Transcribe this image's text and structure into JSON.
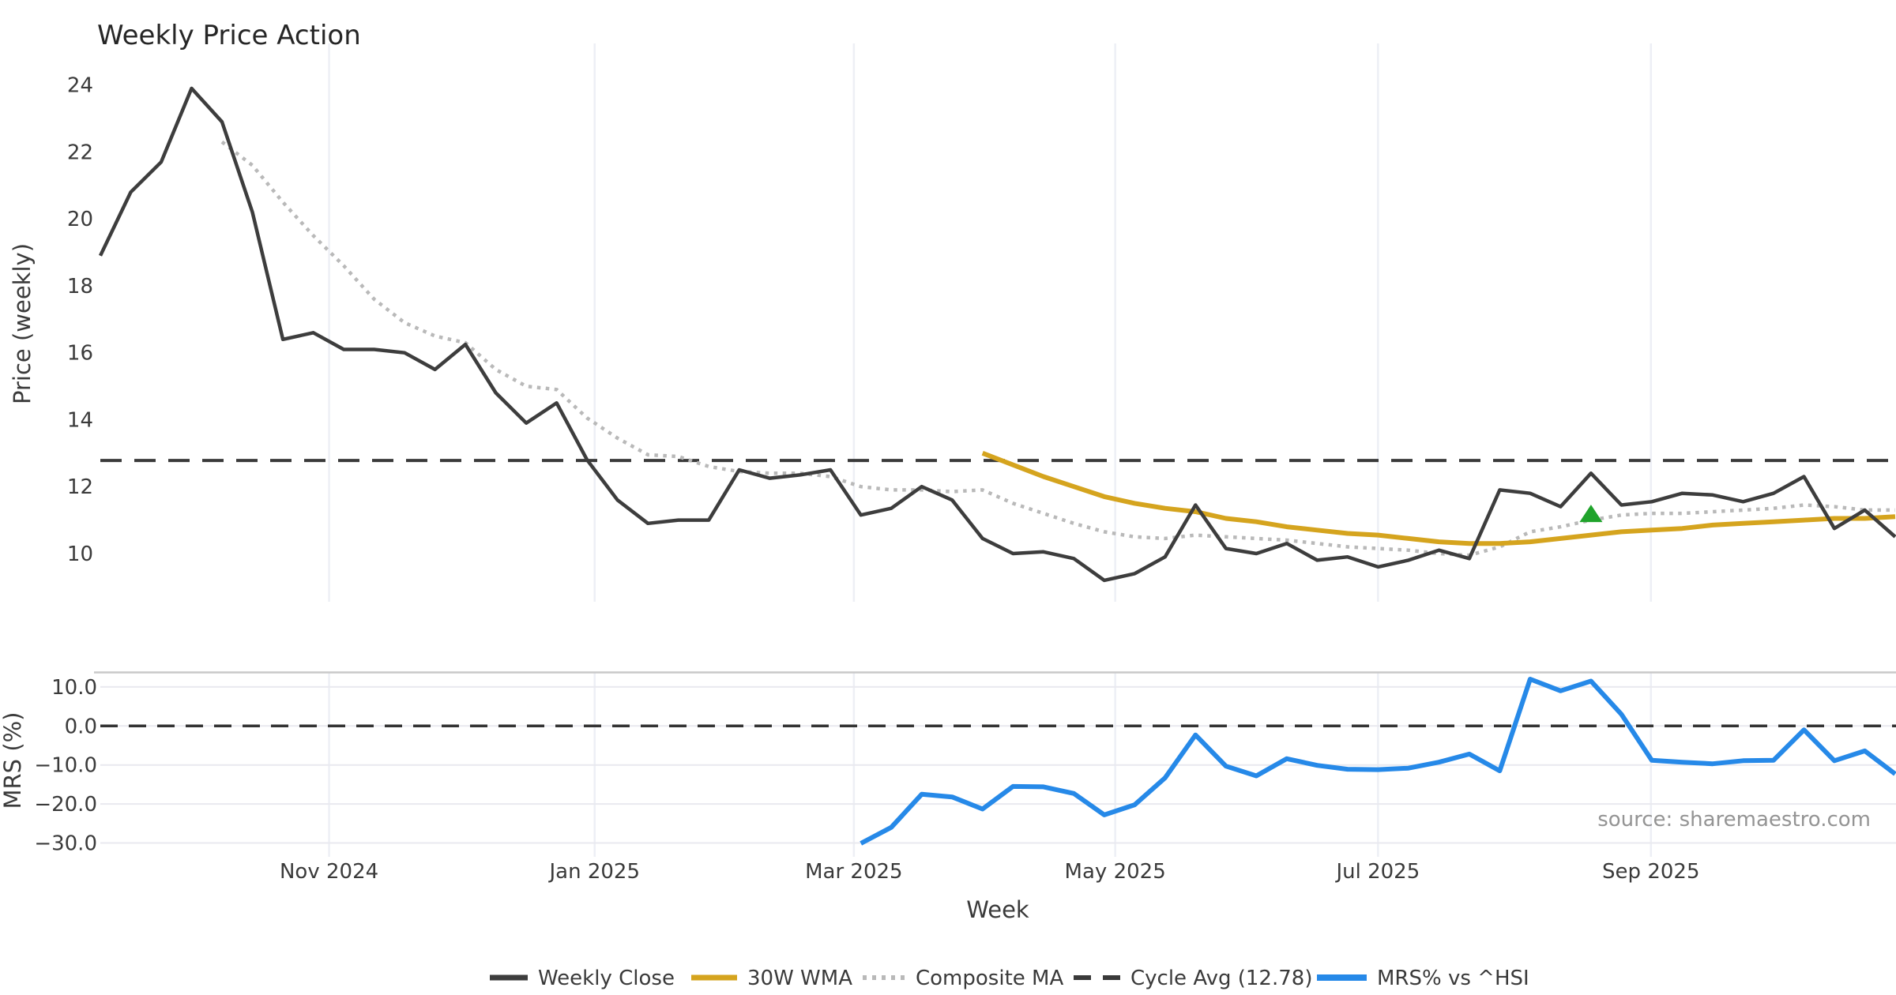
{
  "title": "Weekly Price Action",
  "source": "source: sharemaestro.com",
  "top_panel": {
    "y_label": "Price (weekly)",
    "y_ticks": [
      "24",
      "22",
      "20",
      "18",
      "16",
      "14",
      "12",
      "10"
    ],
    "y_tick_values": [
      24,
      22,
      20,
      18,
      16,
      14,
      12,
      10
    ]
  },
  "bottom_panel": {
    "y_label": "MRS (%)",
    "y_ticks": [
      "10.0",
      "0.0",
      "−10.0",
      "−20.0",
      "−30.0"
    ],
    "y_tick_values": [
      10,
      0,
      -10,
      -20,
      -30
    ]
  },
  "x_axis": {
    "label": "Week",
    "month_ticks": [
      {
        "label": "Nov 2024",
        "week": 7.52
      },
      {
        "label": "Jan 2025",
        "week": 16.25
      },
      {
        "label": "Mar 2025",
        "week": 24.77
      },
      {
        "label": "May 2025",
        "week": 33.36
      },
      {
        "label": "Jul 2025",
        "week": 42.0
      },
      {
        "label": "Sep 2025",
        "week": 50.97
      }
    ]
  },
  "legend": [
    {
      "label": "Weekly Close",
      "swatch": "solid",
      "color": "#3d3d3d"
    },
    {
      "label": "30W WMA",
      "swatch": "solid",
      "color": "#d5a41e"
    },
    {
      "label": "Composite MA",
      "swatch": "dotted",
      "color": "#b9b9b9"
    },
    {
      "label": "Cycle Avg (12.78)",
      "swatch": "dashed",
      "color": "#3a3a3a"
    },
    {
      "label": "MRS% vs ^HSI",
      "swatch": "solid-thick",
      "color": "#2689e8"
    }
  ],
  "colors": {
    "close": "#3d3d3d",
    "wma": "#d5a41e",
    "composite": "#b9b9b9",
    "cycle": "#3a3a3a",
    "mrs": "#2689e8",
    "marker": "#1fa32b",
    "grid_vertical": "#edeff5",
    "grid_horizontal": "#e9e9ef",
    "spine": "#c9c9c9"
  },
  "chart_data": {
    "type": "line",
    "title": "Weekly Price Action",
    "xlabel": "Week",
    "x_unit": "week_index",
    "panels": [
      {
        "name": "price",
        "ylabel": "Price (weekly)",
        "ylim": [
          8.6,
          25.2
        ],
        "yticks": [
          10,
          12,
          14,
          16,
          18,
          20,
          22,
          24
        ]
      },
      {
        "name": "mrs",
        "ylabel": "MRS (%)",
        "ylim": [
          -33.5,
          13.7
        ],
        "yticks": [
          -30,
          -20,
          -10,
          0,
          10
        ]
      }
    ],
    "grid": "vertical-months-and-bottom-horizontal",
    "legend_position": "bottom-center",
    "cycle_avg": 12.78,
    "series": [
      {
        "name": "Weekly Close",
        "panel": "price",
        "start_week": 0,
        "values": [
          18.9,
          20.8,
          21.7,
          23.9,
          22.9,
          20.2,
          16.4,
          16.6,
          16.1,
          16.1,
          16.0,
          15.5,
          16.25,
          14.8,
          13.9,
          14.5,
          12.8,
          11.6,
          10.9,
          11.0,
          11.0,
          12.5,
          12.25,
          12.35,
          12.5,
          11.15,
          11.35,
          12.0,
          11.6,
          10.45,
          10.0,
          10.05,
          9.85,
          9.2,
          9.4,
          9.9,
          11.45,
          10.15,
          10.0,
          10.3,
          9.8,
          9.9,
          9.6,
          9.8,
          10.1,
          9.85,
          11.9,
          11.8,
          11.4,
          12.4,
          11.45,
          11.55,
          11.8,
          11.75,
          11.55,
          11.8,
          12.3,
          10.75,
          11.3,
          10.5
        ]
      },
      {
        "name": "Composite MA",
        "panel": "price",
        "start_week": 4,
        "values": [
          22.3,
          21.6,
          20.5,
          19.5,
          18.6,
          17.6,
          16.9,
          16.5,
          16.3,
          15.5,
          15.0,
          14.9,
          14.05,
          13.45,
          12.95,
          12.9,
          12.6,
          12.45,
          12.4,
          12.4,
          12.3,
          12.0,
          11.9,
          11.9,
          11.85,
          11.9,
          11.5,
          11.2,
          10.9,
          10.65,
          10.5,
          10.45,
          10.55,
          10.5,
          10.45,
          10.4,
          10.3,
          10.2,
          10.15,
          10.1,
          10.0,
          9.95,
          10.2,
          10.65,
          10.8,
          11.0,
          11.15,
          11.2,
          11.2,
          11.25,
          11.3,
          11.35,
          11.45,
          11.4,
          11.3,
          11.3
        ]
      },
      {
        "name": "30W WMA",
        "panel": "price",
        "start_week": 29,
        "values": [
          13.0,
          12.65,
          12.3,
          12.0,
          11.7,
          11.5,
          11.35,
          11.25,
          11.05,
          10.95,
          10.8,
          10.7,
          10.6,
          10.55,
          10.45,
          10.35,
          10.3,
          10.3,
          10.35,
          10.45,
          10.55,
          10.65,
          10.7,
          10.75,
          10.85,
          10.9,
          10.95,
          11.0,
          11.05,
          11.05,
          11.1
        ]
      },
      {
        "name": "Cycle Avg (12.78)",
        "panel": "price",
        "style": "dashed-horizontal",
        "value": 12.78
      },
      {
        "name": "MRS% vs ^HSI",
        "panel": "mrs",
        "start_week": 25,
        "values": [
          -30.1,
          -26.0,
          -17.5,
          -18.2,
          -21.3,
          -15.5,
          -15.6,
          -17.3,
          -22.8,
          -20.2,
          -13.3,
          -2.3,
          -10.3,
          -12.8,
          -8.4,
          -10.1,
          -11.1,
          -11.2,
          -10.8,
          -9.3,
          -7.2,
          -11.5,
          12.0,
          9.0,
          11.5,
          3.0,
          -8.8,
          -9.3,
          -9.7,
          -8.9,
          -8.8,
          -1.0,
          -8.9,
          -6.4,
          -12.3
        ]
      },
      {
        "name": "Zero line",
        "panel": "mrs",
        "style": "dashed-horizontal",
        "value": 0.0
      }
    ],
    "markers": [
      {
        "name": "buy-signal",
        "shape": "triangle-up",
        "color": "#1fa32b",
        "week": 49,
        "value": 11.2
      }
    ]
  }
}
